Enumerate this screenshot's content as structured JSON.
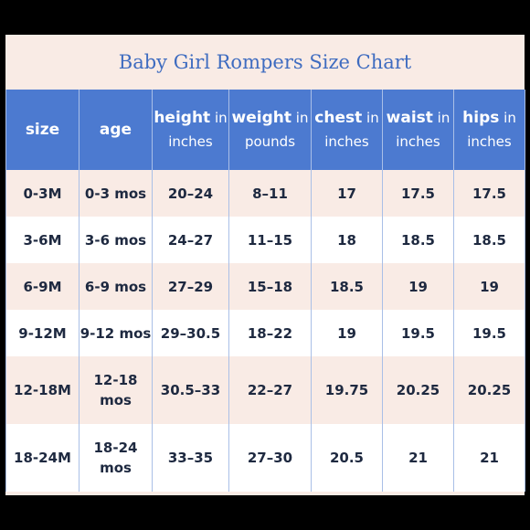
{
  "title": "Baby Girl Rompers Size Chart",
  "header": [
    {
      "strong": "size",
      "sub": ""
    },
    {
      "strong": "age",
      "sub": ""
    },
    {
      "strong": "height",
      "sub": "in inches"
    },
    {
      "strong": "weight",
      "sub": "in pounds"
    },
    {
      "strong": "chest",
      "sub": "in inches"
    },
    {
      "strong": "waist",
      "sub": "in inches"
    },
    {
      "strong": "hips",
      "sub": "in inches"
    }
  ],
  "rows": [
    [
      "0-3M",
      "0-3 mos",
      "20–24",
      "8–11",
      "17",
      "17.5",
      "17.5"
    ],
    [
      "3-6M",
      "3-6 mos",
      "24–27",
      "11–15",
      "18",
      "18.5",
      "18.5"
    ],
    [
      "6-9M",
      "6-9 mos",
      "27–29",
      "15–18",
      "18.5",
      "19",
      "19"
    ],
    [
      "9-12M",
      "9-12 mos",
      "29–30.5",
      "18–22",
      "19",
      "19.5",
      "19.5"
    ],
    [
      "12-18M",
      "12-18 mos",
      "30.5–33",
      "22–27",
      "19.75",
      "20.25",
      "20.25"
    ],
    [
      "18-24M",
      "18-24 mos",
      "33–35",
      "27–30",
      "20.5",
      "21",
      "21"
    ]
  ],
  "colors": {
    "header_bg": "#4c7ad0",
    "title_text": "#3f6cc0",
    "pink_row": "#f9ebe5",
    "white_row": "#ffffff"
  }
}
